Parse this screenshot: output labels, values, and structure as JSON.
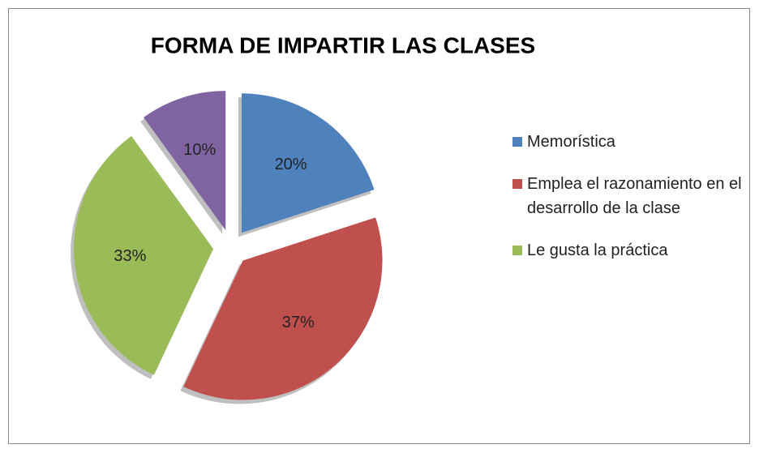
{
  "chart_data": {
    "type": "pie",
    "title": "FORMA DE IMPARTIR LAS CLASES",
    "categories": [
      "Memorística",
      "Emplea el razonamiento en el desarrollo de la clase",
      "Le gusta la práctica",
      null
    ],
    "values": [
      20,
      37,
      33,
      10
    ],
    "value_labels": [
      "20%",
      "37%",
      "33%",
      "10%"
    ],
    "colors": [
      "#4f81bd",
      "#c0504d",
      "#9bbb59",
      "#8064a2"
    ],
    "legend": "right"
  }
}
